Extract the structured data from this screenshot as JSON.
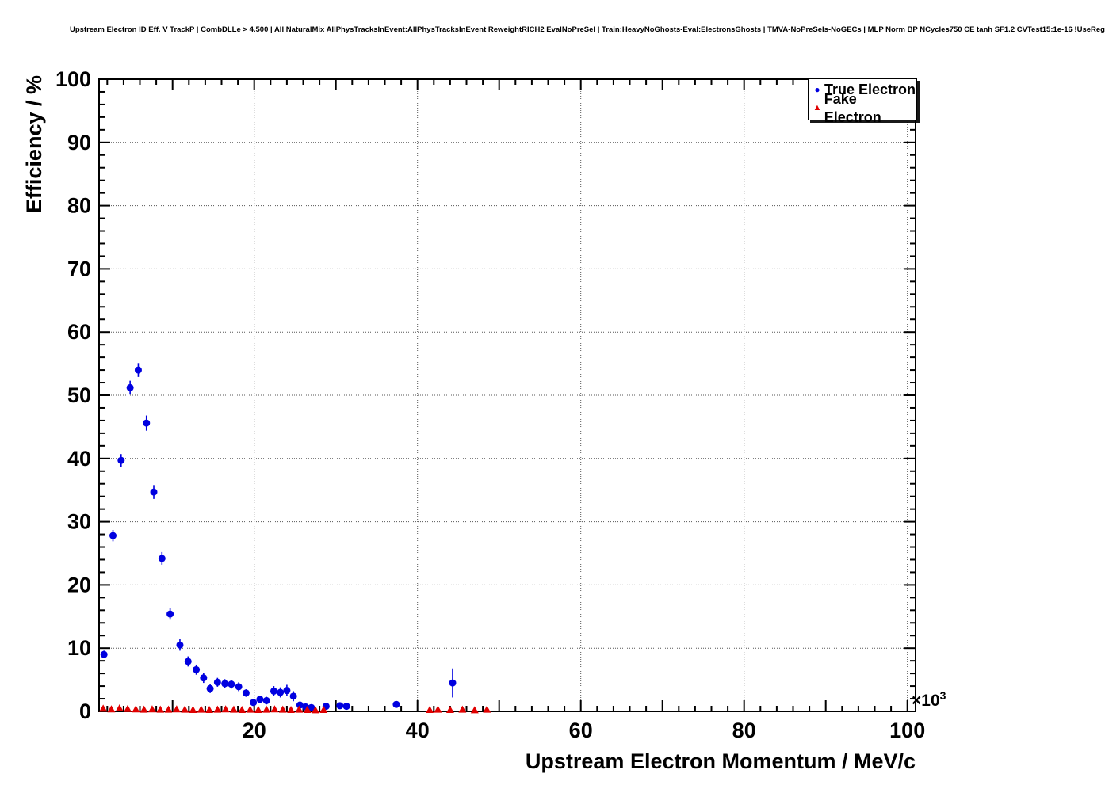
{
  "title": "Upstream Electron ID Eff. V TrackP | CombDLLe > 4.500 | All NaturalMix AllPhysTracksInEvent:AllPhysTracksInEvent ReweightRICH2 EvalNoPreSel | Train:HeavyNoGhosts-Eval:ElectronsGhosts | TMVA-NoPreSels-NoGECs | MLP Norm BP NCycles750 CE tanh SF1.2 CVTest15:1e-16 !UseReg",
  "chart_data": {
    "type": "scatter",
    "title": "Upstream Electron ID Eff. V TrackP",
    "xlabel": "Upstream Electron Momentum / MeV/c",
    "ylabel": "Efficiency / %",
    "x_multiplier_base": "×10",
    "x_multiplier_exp": "3",
    "xlim": [
      1,
      101
    ],
    "ylim": [
      0,
      100
    ],
    "x_ticks": [
      20,
      40,
      60,
      80,
      100
    ],
    "y_ticks": [
      0,
      10,
      20,
      30,
      40,
      50,
      60,
      70,
      80,
      90,
      100
    ],
    "x_mid_step": 10,
    "x_minor_step": 2,
    "y_minor_step": 2,
    "grid": true,
    "grid_color": "#555555",
    "frame_color": "#000000",
    "legend_position": "top-right",
    "series": [
      {
        "name": "True Electron",
        "color": "#0000e0",
        "marker": "circle",
        "points": [
          {
            "x": 1.6,
            "y": 9.0,
            "ey": 0.6
          },
          {
            "x": 2.7,
            "y": 27.8,
            "ey": 0.9
          },
          {
            "x": 3.7,
            "y": 39.7,
            "ey": 1.0
          },
          {
            "x": 4.8,
            "y": 51.2,
            "ey": 1.1
          },
          {
            "x": 5.8,
            "y": 54.0,
            "ey": 1.1
          },
          {
            "x": 6.8,
            "y": 45.6,
            "ey": 1.2
          },
          {
            "x": 7.7,
            "y": 34.7,
            "ey": 1.1
          },
          {
            "x": 8.7,
            "y": 24.2,
            "ey": 1.0
          },
          {
            "x": 9.7,
            "y": 15.4,
            "ey": 0.9
          },
          {
            "x": 10.9,
            "y": 10.5,
            "ey": 0.9
          },
          {
            "x": 11.9,
            "y": 7.9,
            "ey": 0.8
          },
          {
            "x": 12.9,
            "y": 6.6,
            "ey": 0.8
          },
          {
            "x": 13.8,
            "y": 5.3,
            "ey": 0.8
          },
          {
            "x": 14.6,
            "y": 3.6,
            "ey": 0.7
          },
          {
            "x": 15.5,
            "y": 4.6,
            "ey": 0.7
          },
          {
            "x": 16.4,
            "y": 4.4,
            "ey": 0.7
          },
          {
            "x": 17.2,
            "y": 4.3,
            "ey": 0.7
          },
          {
            "x": 18.1,
            "y": 3.9,
            "ey": 0.7
          },
          {
            "x": 19.0,
            "y": 2.9,
            "ey": 0.6
          },
          {
            "x": 19.9,
            "y": 1.4,
            "ey": 0.5
          },
          {
            "x": 20.7,
            "y": 1.9,
            "ey": 0.6
          },
          {
            "x": 21.5,
            "y": 1.7,
            "ey": 0.6
          },
          {
            "x": 22.4,
            "y": 3.2,
            "ey": 0.8
          },
          {
            "x": 23.2,
            "y": 3.0,
            "ey": 0.8
          },
          {
            "x": 24.0,
            "y": 3.3,
            "ey": 0.9
          },
          {
            "x": 24.8,
            "y": 2.4,
            "ey": 0.8
          },
          {
            "x": 25.6,
            "y": 1.0,
            "ey": 0.5
          },
          {
            "x": 26.3,
            "y": 0.7,
            "ey": 0.4
          },
          {
            "x": 27.0,
            "y": 0.6,
            "ey": 0.4
          },
          {
            "x": 28.8,
            "y": 0.8,
            "ey": 0.4
          },
          {
            "x": 30.5,
            "y": 0.9,
            "ey": 0.4
          },
          {
            "x": 31.3,
            "y": 0.8,
            "ey": 0.4
          },
          {
            "x": 37.4,
            "y": 1.1,
            "ey": 0.5
          },
          {
            "x": 44.3,
            "y": 4.5,
            "ey": 2.3
          }
        ]
      },
      {
        "name": "Fake Electron",
        "color": "#e00000",
        "marker": "triangle",
        "points": [
          {
            "x": 1.5,
            "y": 0.45,
            "ey": 0.1
          },
          {
            "x": 2.5,
            "y": 0.35,
            "ey": 0.1
          },
          {
            "x": 3.5,
            "y": 0.5,
            "ey": 0.1
          },
          {
            "x": 4.5,
            "y": 0.4,
            "ey": 0.1
          },
          {
            "x": 5.5,
            "y": 0.35,
            "ey": 0.1
          },
          {
            "x": 6.5,
            "y": 0.3,
            "ey": 0.1
          },
          {
            "x": 7.5,
            "y": 0.35,
            "ey": 0.1
          },
          {
            "x": 8.5,
            "y": 0.3,
            "ey": 0.1
          },
          {
            "x": 9.5,
            "y": 0.3,
            "ey": 0.1
          },
          {
            "x": 10.5,
            "y": 0.35,
            "ey": 0.1
          },
          {
            "x": 11.5,
            "y": 0.3,
            "ey": 0.1
          },
          {
            "x": 12.5,
            "y": 0.25,
            "ey": 0.1
          },
          {
            "x": 13.5,
            "y": 0.3,
            "ey": 0.1
          },
          {
            "x": 14.5,
            "y": 0.25,
            "ey": 0.1
          },
          {
            "x": 15.5,
            "y": 0.3,
            "ey": 0.1
          },
          {
            "x": 16.5,
            "y": 0.35,
            "ey": 0.1
          },
          {
            "x": 17.5,
            "y": 0.3,
            "ey": 0.1
          },
          {
            "x": 18.5,
            "y": 0.25,
            "ey": 0.1
          },
          {
            "x": 19.5,
            "y": 0.3,
            "ey": 0.1
          },
          {
            "x": 20.5,
            "y": 0.25,
            "ey": 0.1
          },
          {
            "x": 21.5,
            "y": 0.3,
            "ey": 0.1
          },
          {
            "x": 22.5,
            "y": 0.35,
            "ey": 0.1
          },
          {
            "x": 23.5,
            "y": 0.3,
            "ey": 0.1
          },
          {
            "x": 24.5,
            "y": 0.25,
            "ey": 0.1
          },
          {
            "x": 25.5,
            "y": 0.3,
            "ey": 0.1
          },
          {
            "x": 26.5,
            "y": 0.25,
            "ey": 0.1
          },
          {
            "x": 27.5,
            "y": 0.2,
            "ey": 0.1
          },
          {
            "x": 28.5,
            "y": 0.25,
            "ey": 0.1
          },
          {
            "x": 41.5,
            "y": 0.25,
            "ey": 0.15
          },
          {
            "x": 42.5,
            "y": 0.3,
            "ey": 0.15
          },
          {
            "x": 44.0,
            "y": 0.25,
            "ey": 0.15
          },
          {
            "x": 45.5,
            "y": 0.3,
            "ey": 0.15
          },
          {
            "x": 47.0,
            "y": 0.2,
            "ey": 0.15
          },
          {
            "x": 48.5,
            "y": 0.3,
            "ey": 0.15
          }
        ]
      }
    ]
  }
}
